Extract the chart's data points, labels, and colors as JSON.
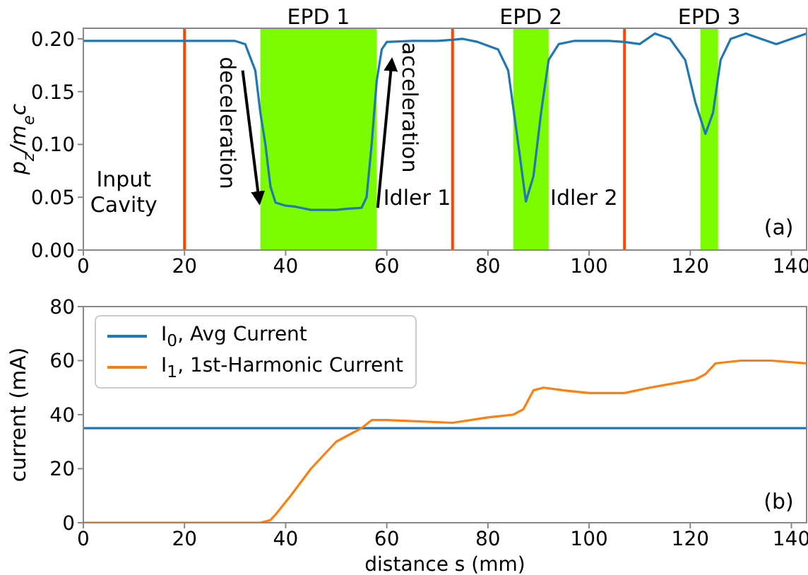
{
  "chart_data": [
    {
      "type": "line",
      "ylabel": "p$_{z}$/m$_{e}$c",
      "series": [
        {
          "color": "#1f77b4",
          "x": [
            0,
            10,
            20,
            30,
            32,
            34,
            35,
            36,
            37,
            38,
            40,
            42,
            45,
            48,
            50,
            52,
            55,
            56,
            57,
            58,
            59,
            60,
            65,
            70,
            73,
            75,
            78,
            82,
            84,
            86,
            87.5,
            89,
            90.5,
            92,
            94,
            97,
            100,
            104,
            107,
            110,
            113,
            116,
            119,
            121,
            123,
            124.5,
            126,
            128,
            131,
            134,
            137,
            140,
            143
          ],
          "values": [
            0.198,
            0.198,
            0.198,
            0.198,
            0.195,
            0.17,
            0.13,
            0.1,
            0.06,
            0.045,
            0.042,
            0.041,
            0.038,
            0.038,
            0.038,
            0.039,
            0.04,
            0.05,
            0.1,
            0.16,
            0.19,
            0.197,
            0.198,
            0.198,
            0.199,
            0.2,
            0.197,
            0.19,
            0.17,
            0.1,
            0.046,
            0.07,
            0.13,
            0.18,
            0.195,
            0.198,
            0.198,
            0.198,
            0.197,
            0.195,
            0.205,
            0.2,
            0.18,
            0.14,
            0.11,
            0.13,
            0.18,
            0.2,
            0.205,
            0.2,
            0.195,
            0.2,
            0.205
          ]
        }
      ],
      "xlim": [
        0,
        143
      ],
      "xticks": [
        0,
        20,
        40,
        60,
        80,
        100,
        120,
        140
      ],
      "ylim": [
        0,
        0.21
      ],
      "yticks": [
        {
          "value": 0,
          "label": "0.00"
        },
        {
          "value": 0.05,
          "label": "0.05"
        },
        {
          "value": 0.1,
          "label": "0.10"
        },
        {
          "value": 0.15,
          "label": "0.15"
        },
        {
          "value": 0.2,
          "label": "0.20"
        }
      ],
      "bands": [
        {
          "axis": "x",
          "from": 35,
          "to": 58,
          "label": "EPD 1",
          "color": "#7cfc00"
        },
        {
          "axis": "x",
          "from": 85,
          "to": 92,
          "label": "EPD 2",
          "color": "#7cfc00"
        },
        {
          "axis": "x",
          "from": 122,
          "to": 125.5,
          "label": "EPD 3",
          "color": "#7cfc00"
        }
      ],
      "ref_lines": [
        {
          "axis": "x",
          "value": 20,
          "color": "#ff4500"
        },
        {
          "axis": "x",
          "value": 73,
          "color": "#ff4500"
        },
        {
          "axis": "x",
          "value": 107,
          "color": "#ff4500"
        }
      ],
      "annotations": [
        "Input Cavity",
        "deceleration",
        "acceleration",
        "Idler 1",
        "Idler 2",
        "(a)"
      ],
      "legend": false,
      "marker": "none",
      "line_style": "solid"
    },
    {
      "type": "line",
      "xlabel": "distance s (mm)",
      "ylabel": "current (mA)",
      "series": [
        {
          "name": "I$_{0}$, Avg Current",
          "color": "#1f77b4",
          "x": [
            0,
            20,
            40,
            60,
            80,
            100,
            120,
            143
          ],
          "values": [
            35,
            35,
            35,
            35,
            35,
            35,
            35,
            35
          ]
        },
        {
          "name": "I$_{1}$, 1st-Harmonic Current",
          "color": "#ff7f0e",
          "x": [
            0,
            10,
            20,
            30,
            35,
            37,
            38,
            41,
            45,
            50,
            53,
            55,
            57,
            60,
            73,
            80,
            85,
            87,
            89,
            91,
            95,
            100,
            107,
            112,
            118,
            121,
            123,
            125,
            130,
            136,
            143
          ],
          "values": [
            0,
            0,
            0,
            0,
            0,
            1,
            3,
            10,
            20,
            30,
            33,
            35,
            38,
            38,
            37,
            39,
            40,
            42,
            49,
            50,
            49,
            48,
            48,
            50,
            52,
            53,
            55,
            59,
            60,
            60,
            59
          ]
        }
      ],
      "xlim": [
        0,
        143
      ],
      "xticks": [
        0,
        20,
        40,
        60,
        80,
        100,
        120,
        140
      ],
      "ylim": [
        0,
        80
      ],
      "yticks": [
        0,
        20,
        40,
        60,
        80
      ],
      "annotations": [
        "(b)"
      ],
      "legend": "top left",
      "marker": "none",
      "line_style": "solid"
    }
  ]
}
